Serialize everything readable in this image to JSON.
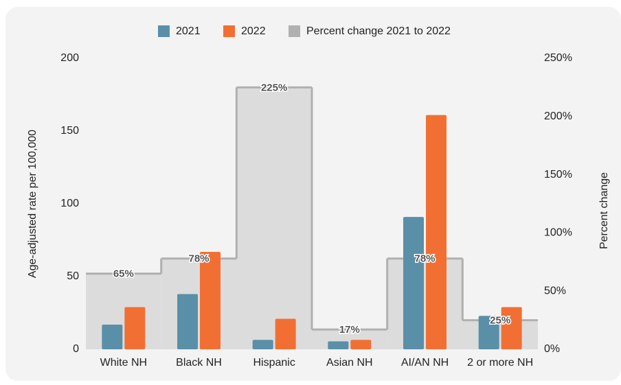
{
  "chart_data": {
    "type": "bar",
    "categories": [
      "White NH",
      "Black NH",
      "Hispanic",
      "Asian NH",
      "AI/AN NH",
      "2 or more NH"
    ],
    "series": [
      {
        "name": "2021",
        "color": "#5a8fa8",
        "values": [
          17,
          38,
          6.5,
          5.5,
          91,
          23
        ]
      },
      {
        "name": "2022",
        "color": "#f26f33",
        "values": [
          29,
          67,
          21,
          6.5,
          161,
          29
        ]
      },
      {
        "name": "Percent change 2021 to 2022",
        "color": "#b0b0b0",
        "type": "step",
        "axis": "y2",
        "values": [
          65,
          78,
          225,
          17,
          78,
          25
        ],
        "value_labels": [
          "65%",
          "78%",
          "225%",
          "17%",
          "78%",
          "25%"
        ]
      }
    ],
    "ylabel": "Age-adjusted rate per 100,000",
    "y2label": "Percent change",
    "ylim": [
      0,
      200
    ],
    "yticks": [
      0,
      50,
      100,
      150,
      200
    ],
    "y2lim": [
      0,
      250
    ],
    "y2ticks": [
      {
        "value": 0,
        "label": "0%"
      },
      {
        "value": 50,
        "label": "50%"
      },
      {
        "value": 100,
        "label": "100%"
      },
      {
        "value": 150,
        "label": "150%"
      },
      {
        "value": 200,
        "label": "200%"
      },
      {
        "value": 250,
        "label": "250%"
      }
    ],
    "legend": "top"
  }
}
